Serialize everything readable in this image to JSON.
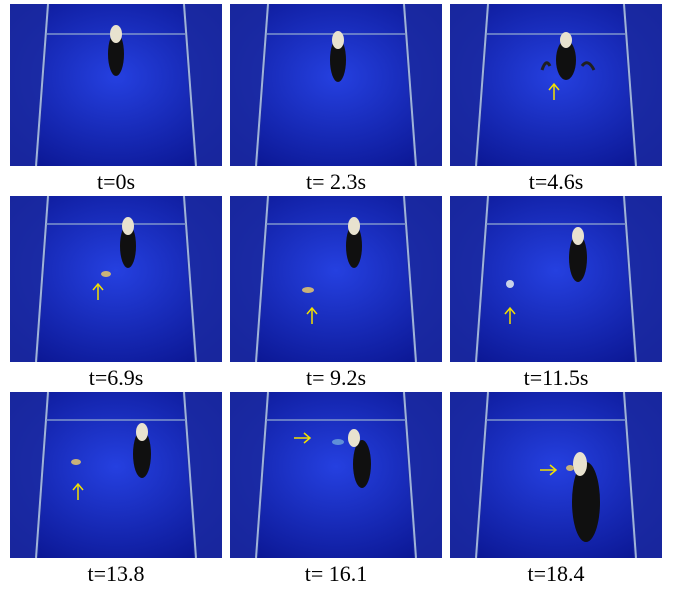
{
  "figure": {
    "frames": [
      {
        "caption": "t=0s",
        "marker": "none"
      },
      {
        "caption": "t= 2.3s",
        "marker": "none"
      },
      {
        "caption": "t=4.6s",
        "marker": "up-arrow"
      },
      {
        "caption": "t=6.9s",
        "marker": "up-arrow"
      },
      {
        "caption": "t= 9.2s",
        "marker": "up-arrow"
      },
      {
        "caption": "t=11.5s",
        "marker": "up-arrow"
      },
      {
        "caption": "t=13.8",
        "marker": "up-arrow"
      },
      {
        "caption": "t= 16.1",
        "marker": "right-arrow"
      },
      {
        "caption": "t=18.4",
        "marker": "right-arrow"
      }
    ],
    "colors": {
      "water": "#1530c8",
      "tank_wall": "#2a3fb0",
      "frame_rail": "#9fb3d8",
      "vehicle_body": "#101010",
      "vehicle_nose": "#e8e2cf",
      "arrow": "#f2e000",
      "caption_text": "#000000"
    }
  }
}
